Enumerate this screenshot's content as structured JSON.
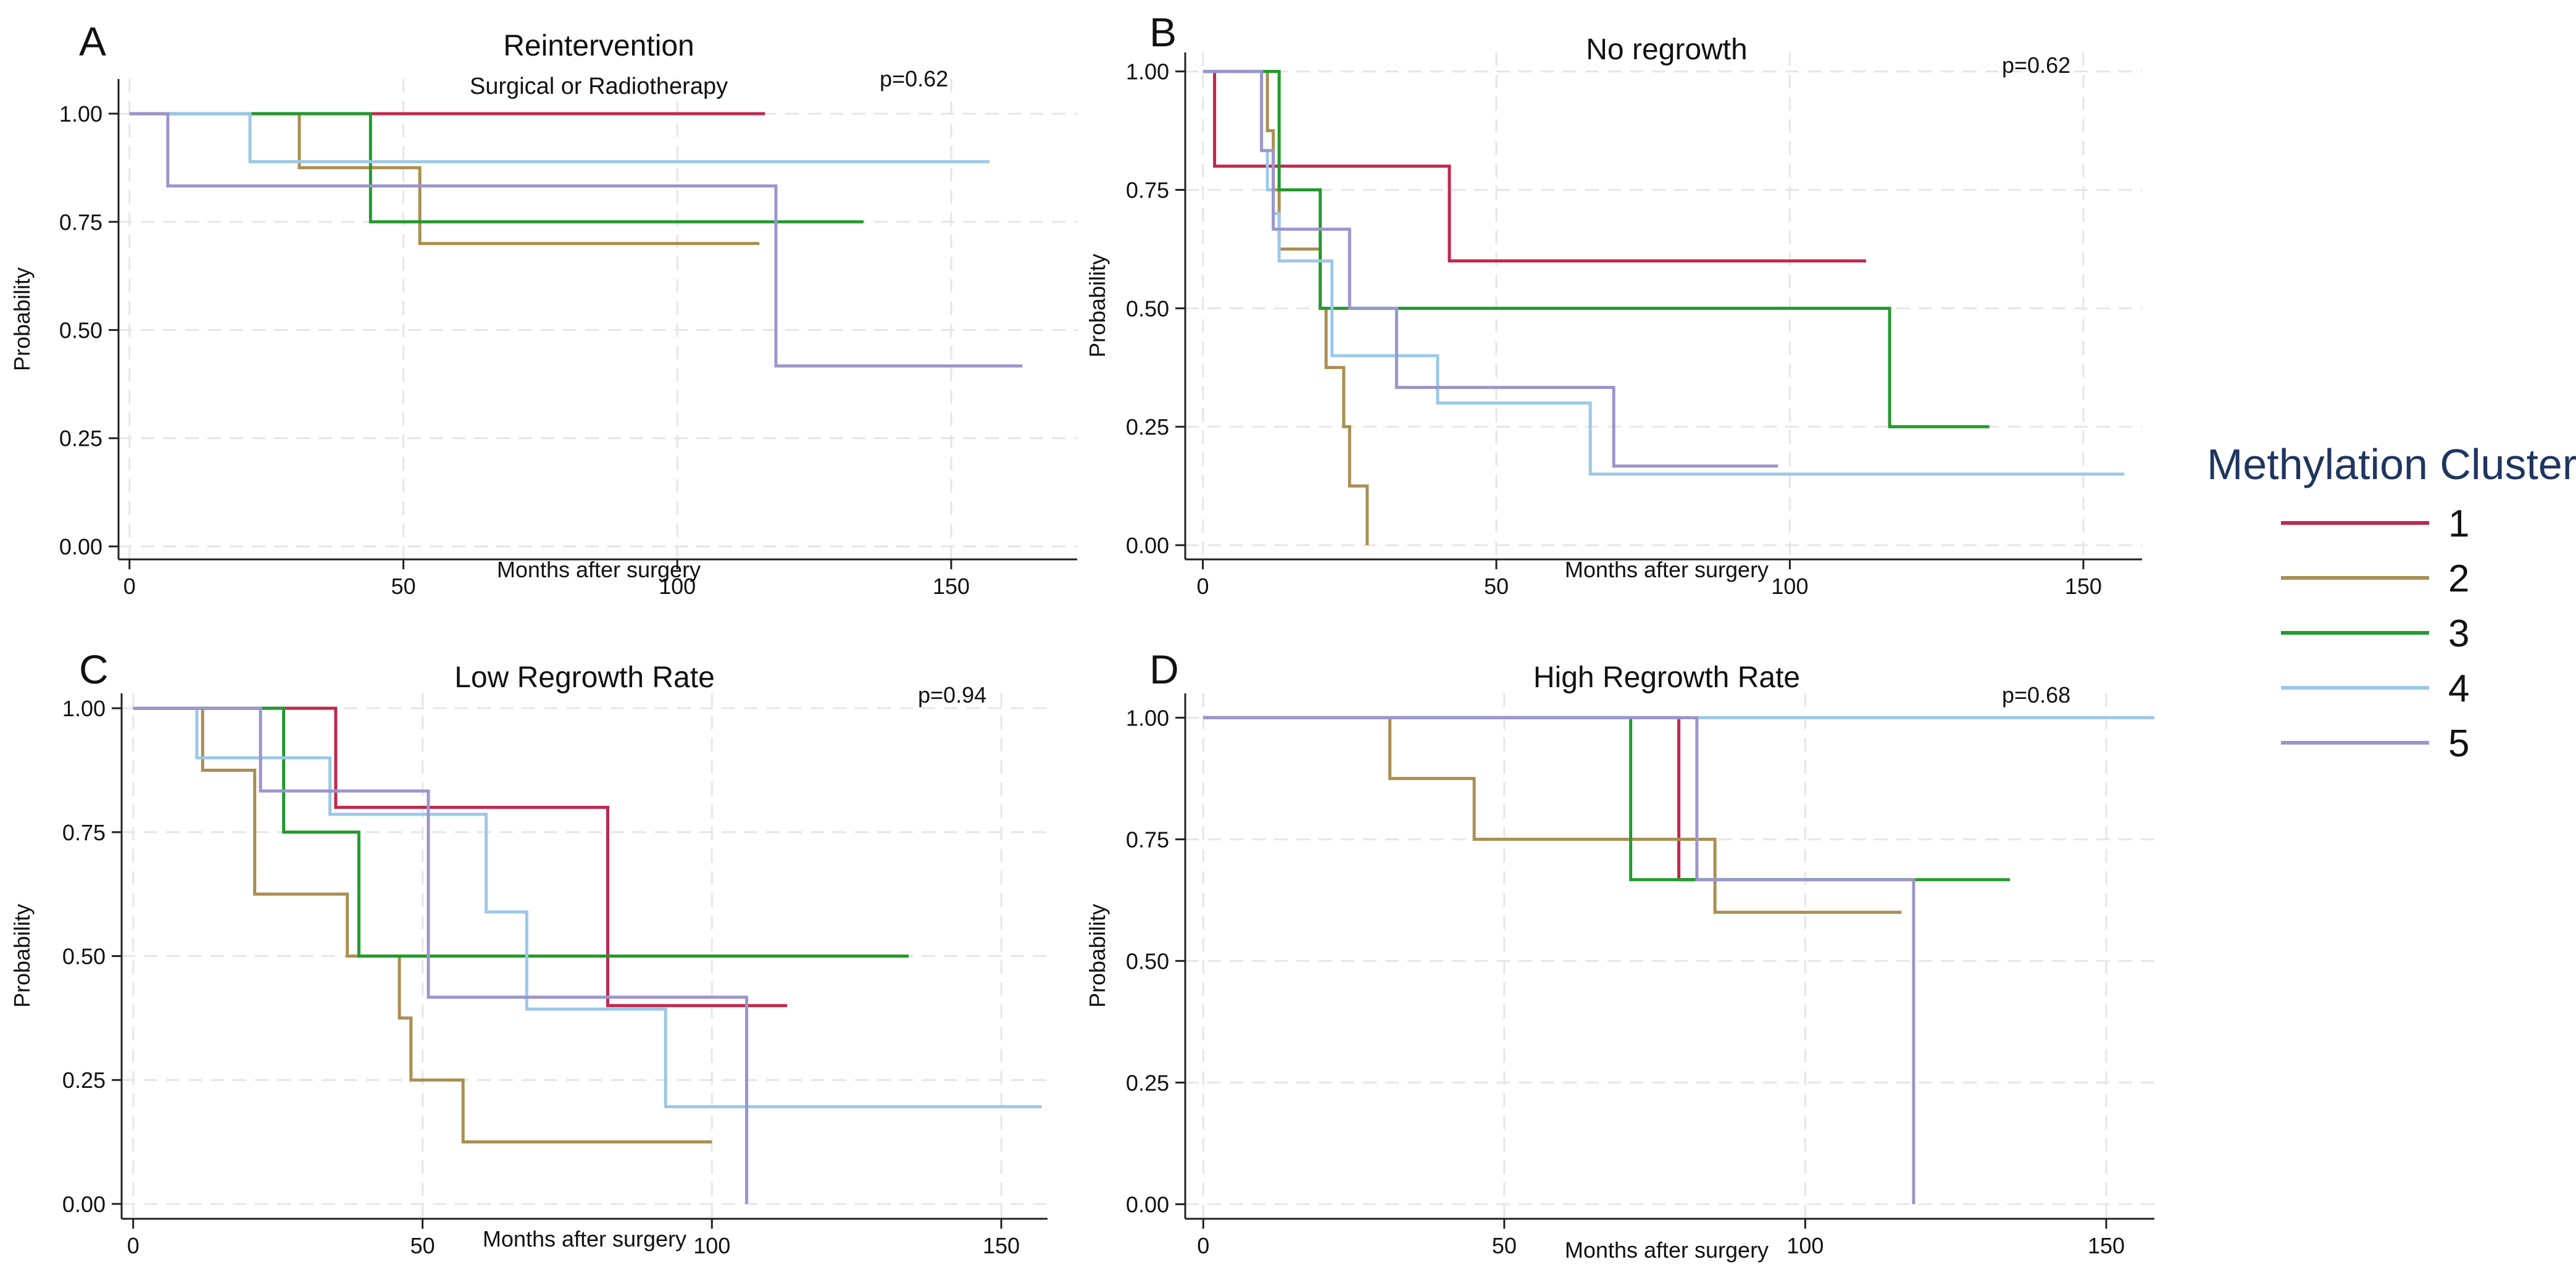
{
  "colors": {
    "1": "#c0284e",
    "2": "#a98f52",
    "3": "#239a2e",
    "4": "#9cc8e8",
    "5": "#9c95cc",
    "legend_title": "#1f3561",
    "grid": "#e6e6e6",
    "axis": "#222222"
  },
  "legend": {
    "title": "Methylation Cluster",
    "entries": [
      "1",
      "2",
      "3",
      "4",
      "5"
    ]
  },
  "chart_data": [
    {
      "panel": "A",
      "type": "line",
      "step": true,
      "title": "Reintervention",
      "subtitle": "Surgical or Radiotherapy",
      "annotation": "p=0.62",
      "xlabel": "Months after surgery",
      "ylabel": "Probability",
      "xlim": [
        -2,
        173
      ],
      "ylim": [
        -0.03,
        1.08
      ],
      "xticks": [
        0,
        50,
        100,
        150
      ],
      "yticks": [
        0.0,
        0.25,
        0.5,
        0.75,
        1.0
      ],
      "ytick_labels": [
        "0.00",
        "0.25",
        "0.50",
        "0.75",
        "1.00"
      ],
      "grid": true,
      "series": [
        {
          "name": "1",
          "x": [
            0,
            116
          ],
          "y": [
            1.0,
            1.0
          ]
        },
        {
          "name": "2",
          "x": [
            0,
            31,
            53,
            115
          ],
          "y": [
            1.0,
            0.875,
            0.7,
            0.7
          ]
        },
        {
          "name": "3",
          "x": [
            0,
            44,
            134
          ],
          "y": [
            1.0,
            0.75,
            0.75
          ]
        },
        {
          "name": "4",
          "x": [
            0,
            22,
            157
          ],
          "y": [
            1.0,
            0.889,
            0.889
          ]
        },
        {
          "name": "5",
          "x": [
            0,
            7,
            118,
            163
          ],
          "y": [
            1.0,
            0.833,
            0.417,
            0.417
          ]
        }
      ]
    },
    {
      "panel": "B",
      "type": "line",
      "step": true,
      "title": "No regrowth",
      "subtitle": "",
      "annotation": "p=0.62",
      "xlabel": "Months after surgery",
      "ylabel": "Probability",
      "xlim": [
        -3,
        160
      ],
      "ylim": [
        -0.03,
        1.04
      ],
      "xticks": [
        0,
        50,
        100,
        150
      ],
      "yticks": [
        0.0,
        0.25,
        0.5,
        0.75,
        1.0
      ],
      "ytick_labels": [
        "0.00",
        "0.25",
        "0.50",
        "0.75",
        "1.00"
      ],
      "grid": true,
      "series": [
        {
          "name": "1",
          "x": [
            0,
            2,
            42,
            113
          ],
          "y": [
            1.0,
            0.8,
            0.6,
            0.6
          ]
        },
        {
          "name": "2",
          "x": [
            0,
            11,
            12,
            13,
            20,
            21,
            24,
            25,
            28
          ],
          "y": [
            1.0,
            0.875,
            0.75,
            0.625,
            0.5,
            0.375,
            0.25,
            0.125,
            0.0
          ]
        },
        {
          "name": "3",
          "x": [
            0,
            13,
            20,
            117,
            134
          ],
          "y": [
            1.0,
            0.75,
            0.5,
            0.25,
            0.25
          ]
        },
        {
          "name": "4",
          "x": [
            0,
            10,
            11,
            12,
            13,
            22,
            40,
            66,
            157
          ],
          "y": [
            1.0,
            0.833,
            0.75,
            0.7,
            0.6,
            0.4,
            0.3,
            0.15,
            0.15
          ]
        },
        {
          "name": "5",
          "x": [
            0,
            10,
            12,
            25,
            33,
            70,
            98
          ],
          "y": [
            1.0,
            0.833,
            0.667,
            0.5,
            0.333,
            0.167,
            0.167
          ]
        }
      ]
    },
    {
      "panel": "C",
      "type": "line",
      "step": true,
      "title": "Low Regrowth Rate",
      "subtitle": "",
      "annotation": "p=0.94",
      "xlabel": "Months after surgery",
      "ylabel": "Probability",
      "xlim": [
        -2,
        158
      ],
      "ylim": [
        -0.03,
        1.03
      ],
      "xticks": [
        0,
        50,
        100,
        150
      ],
      "yticks": [
        0.0,
        0.25,
        0.5,
        0.75,
        1.0
      ],
      "ytick_labels": [
        "0.00",
        "0.25",
        "0.50",
        "0.75",
        "1.00"
      ],
      "grid": true,
      "series": [
        {
          "name": "1",
          "x": [
            0,
            35,
            82,
            113
          ],
          "y": [
            1.0,
            0.8,
            0.4,
            0.4
          ]
        },
        {
          "name": "2",
          "x": [
            0,
            12,
            21,
            37,
            46,
            48,
            57,
            100
          ],
          "y": [
            1.0,
            0.875,
            0.625,
            0.5,
            0.375,
            0.25,
            0.125,
            0.125
          ]
        },
        {
          "name": "3",
          "x": [
            0,
            26,
            39,
            134
          ],
          "y": [
            1.0,
            0.75,
            0.5,
            0.5
          ]
        },
        {
          "name": "4",
          "x": [
            0,
            11,
            34,
            61,
            68,
            92,
            157
          ],
          "y": [
            1.0,
            0.9,
            0.786,
            0.589,
            0.393,
            0.196,
            0.196
          ]
        },
        {
          "name": "5",
          "x": [
            0,
            22,
            51,
            106
          ],
          "y": [
            1.0,
            0.833,
            0.417,
            0.0
          ]
        }
      ]
    },
    {
      "panel": "D",
      "type": "line",
      "step": true,
      "title": "High Regrowth Rate",
      "subtitle": "",
      "annotation": "p=0.68",
      "xlabel": "Months after surgery",
      "ylabel": "Probability",
      "xlim": [
        -3,
        158
      ],
      "ylim": [
        -0.03,
        1.05
      ],
      "xticks": [
        0,
        50,
        100,
        150
      ],
      "yticks": [
        0.0,
        0.25,
        0.5,
        0.75,
        1.0
      ],
      "ytick_labels": [
        "0.00",
        "0.25",
        "0.50",
        "0.75",
        "1.00"
      ],
      "grid": true,
      "series": [
        {
          "name": "1",
          "x": [
            0,
            79,
            82
          ],
          "y": [
            1.0,
            0.667,
            0.667
          ]
        },
        {
          "name": "2",
          "x": [
            0,
            31,
            45,
            85,
            116
          ],
          "y": [
            1.0,
            0.875,
            0.75,
            0.6,
            0.6
          ]
        },
        {
          "name": "3",
          "x": [
            0,
            71,
            134
          ],
          "y": [
            1.0,
            0.667,
            0.667
          ]
        },
        {
          "name": "4",
          "x": [
            0,
            158
          ],
          "y": [
            1.0,
            1.0
          ]
        },
        {
          "name": "5",
          "x": [
            0,
            82,
            118
          ],
          "y": [
            1.0,
            0.667,
            0.0
          ]
        }
      ]
    }
  ]
}
